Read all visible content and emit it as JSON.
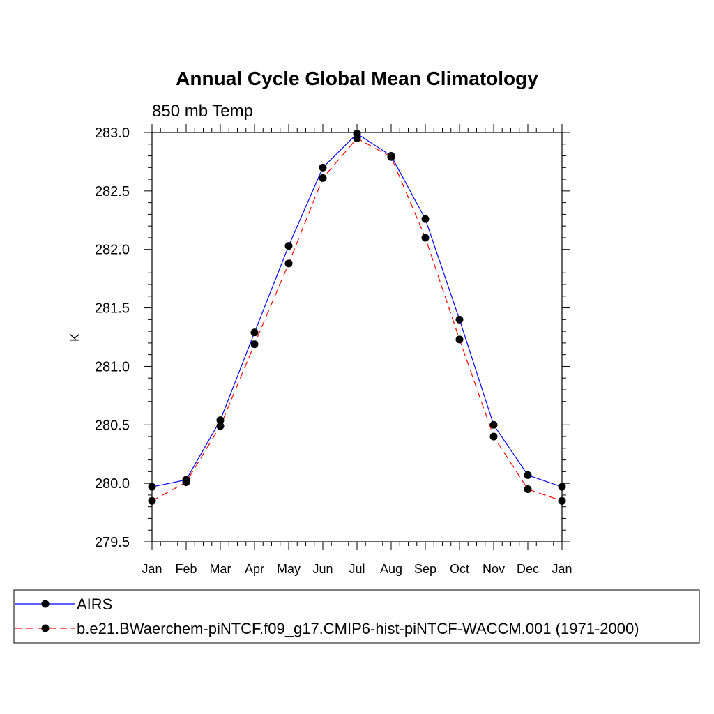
{
  "chart_data": {
    "type": "line",
    "title": "Annual Cycle Global Mean Climatology",
    "subtitle": "850 mb Temp",
    "xlabel": "",
    "ylabel": "K",
    "x": [
      "Jan",
      "Feb",
      "Mar",
      "Apr",
      "May",
      "Jun",
      "Jul",
      "Aug",
      "Sep",
      "Oct",
      "Nov",
      "Dec",
      "Jan"
    ],
    "ylim": [
      279.5,
      283.0
    ],
    "yticks": [
      "279.5",
      "280.0",
      "280.5",
      "281.0",
      "281.5",
      "282.0",
      "282.5",
      "283.0"
    ],
    "grid": false,
    "legend_position": "bottom",
    "series": [
      {
        "name": "AIRS",
        "color": "#0000ff",
        "dash": "solid",
        "marker": "filled-circle",
        "values": [
          279.97,
          280.03,
          280.54,
          281.29,
          282.03,
          282.7,
          282.99,
          282.8,
          282.26,
          281.4,
          280.5,
          280.07,
          279.97
        ]
      },
      {
        "name": "b.e21.BWaerchem-piNTCF.f09_g17.CMIP6-hist-piNTCF-WACCM.001 (1971-2000)",
        "color": "#ff0000",
        "dash": "dashed",
        "marker": "filled-circle",
        "values": [
          279.85,
          280.01,
          280.49,
          281.19,
          281.88,
          282.61,
          282.95,
          282.79,
          282.1,
          281.23,
          280.4,
          279.95,
          279.85
        ]
      }
    ]
  }
}
